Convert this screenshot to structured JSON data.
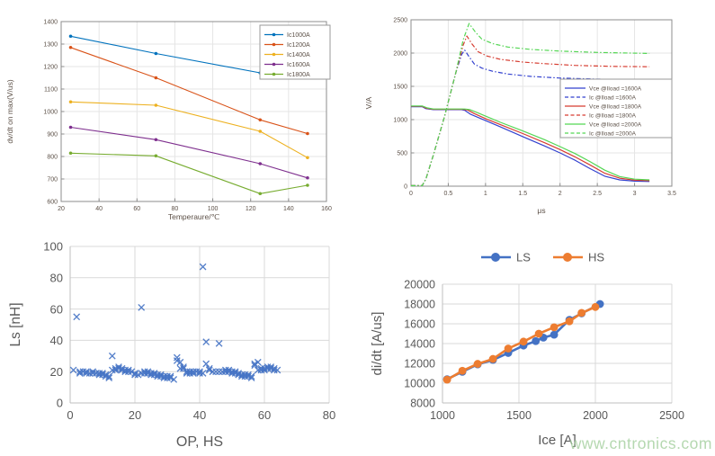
{
  "page": {
    "watermark": "www.cntronics.com",
    "background": "#ffffff"
  },
  "chart_data": [
    {
      "id": "dvdt_vs_temperature",
      "type": "line",
      "style": "matlab",
      "title": "",
      "xlabel": "Temperaure/℃",
      "ylabel": "dv/dt on max(V/us)",
      "xlim": [
        20,
        160
      ],
      "ylim": [
        600,
        1400
      ],
      "xticks": [
        20,
        40,
        60,
        80,
        100,
        120,
        140,
        160
      ],
      "yticks": [
        600,
        700,
        800,
        900,
        1000,
        1100,
        1200,
        1300,
        1400
      ],
      "grid": true,
      "legend_position": "inside-top-right",
      "marker": "dot",
      "x": [
        25,
        70,
        125,
        150
      ],
      "series": [
        {
          "name": "Ic1000A",
          "color": "#0072BD",
          "values": [
            1335,
            1258,
            1172,
            1153
          ]
        },
        {
          "name": "Ic1200A",
          "color": "#D95319",
          "values": [
            1285,
            1150,
            963,
            902
          ]
        },
        {
          "name": "Ic1400A",
          "color": "#EDB120",
          "values": [
            1043,
            1028,
            912,
            795
          ]
        },
        {
          "name": "Ic1600A",
          "color": "#7E2F8E",
          "values": [
            930,
            875,
            768,
            705
          ]
        },
        {
          "name": "Ic1800A",
          "color": "#77AC30",
          "values": [
            815,
            803,
            635,
            672
          ]
        }
      ]
    },
    {
      "id": "turn_on_waveforms",
      "type": "line",
      "style": "matlab",
      "title": "",
      "xlabel": "μs",
      "ylabel": "V/A",
      "xlim": [
        0,
        3.5
      ],
      "ylim": [
        0,
        2500
      ],
      "xticks": [
        0,
        0.5,
        1,
        1.5,
        2,
        2.5,
        3,
        3.5
      ],
      "yticks": [
        0,
        500,
        1000,
        1500,
        2000,
        2500
      ],
      "grid": true,
      "legend_position": "inside-right",
      "marker": "none",
      "series": [
        {
          "name": "Vce @Iload =1600A",
          "color": "#3341cf",
          "dashed": false,
          "points": [
            [
              0,
              1195
            ],
            [
              0.15,
              1195
            ],
            [
              0.2,
              1165
            ],
            [
              0.3,
              1150
            ],
            [
              0.5,
              1150
            ],
            [
              0.68,
              1150
            ],
            [
              0.72,
              1140
            ],
            [
              0.8,
              1080
            ],
            [
              1,
              985
            ],
            [
              1.2,
              890
            ],
            [
              1.5,
              745
            ],
            [
              1.8,
              600
            ],
            [
              2,
              500
            ],
            [
              2.2,
              390
            ],
            [
              2.4,
              265
            ],
            [
              2.6,
              150
            ],
            [
              2.8,
              95
            ],
            [
              3,
              75
            ],
            [
              3.2,
              70
            ]
          ]
        },
        {
          "name": "Ic @Iload =1600A",
          "color": "#3341cf",
          "dashed": true,
          "points": [
            [
              0,
              8
            ],
            [
              0.15,
              8
            ],
            [
              0.2,
              110
            ],
            [
              0.3,
              470
            ],
            [
              0.45,
              1050
            ],
            [
              0.6,
              1700
            ],
            [
              0.68,
              1980
            ],
            [
              0.72,
              2045
            ],
            [
              0.78,
              1945
            ],
            [
              0.85,
              1835
            ],
            [
              0.95,
              1775
            ],
            [
              1.1,
              1725
            ],
            [
              1.3,
              1685
            ],
            [
              1.6,
              1650
            ],
            [
              2,
              1625
            ],
            [
              2.5,
              1608
            ],
            [
              3.2,
              1600
            ]
          ]
        },
        {
          "name": "Vce @Iload =1800A",
          "color": "#d63c30",
          "dashed": false,
          "points": [
            [
              0,
              1200
            ],
            [
              0.15,
              1200
            ],
            [
              0.21,
              1170
            ],
            [
              0.3,
              1155
            ],
            [
              0.5,
              1155
            ],
            [
              0.7,
              1155
            ],
            [
              0.76,
              1145
            ],
            [
              0.85,
              1090
            ],
            [
              1,
              1015
            ],
            [
              1.2,
              925
            ],
            [
              1.5,
              790
            ],
            [
              1.8,
              650
            ],
            [
              2,
              550
            ],
            [
              2.2,
              440
            ],
            [
              2.4,
              320
            ],
            [
              2.6,
              195
            ],
            [
              2.8,
              120
            ],
            [
              3,
              90
            ],
            [
              3.2,
              82
            ]
          ]
        },
        {
          "name": "Ic @Iload =1800A",
          "color": "#d63c30",
          "dashed": true,
          "points": [
            [
              0,
              8
            ],
            [
              0.15,
              8
            ],
            [
              0.2,
              110
            ],
            [
              0.3,
              470
            ],
            [
              0.45,
              1050
            ],
            [
              0.6,
              1700
            ],
            [
              0.7,
              2120
            ],
            [
              0.75,
              2255
            ],
            [
              0.82,
              2135
            ],
            [
              0.9,
              2020
            ],
            [
              1.02,
              1955
            ],
            [
              1.2,
              1905
            ],
            [
              1.5,
              1865
            ],
            [
              1.8,
              1840
            ],
            [
              2.2,
              1815
            ],
            [
              2.7,
              1800
            ],
            [
              3.2,
              1795
            ]
          ]
        },
        {
          "name": "Vce @Iload =2000A",
          "color": "#54d654",
          "dashed": false,
          "points": [
            [
              0,
              1205
            ],
            [
              0.15,
              1205
            ],
            [
              0.22,
              1175
            ],
            [
              0.3,
              1160
            ],
            [
              0.5,
              1160
            ],
            [
              0.72,
              1160
            ],
            [
              0.79,
              1150
            ],
            [
              0.9,
              1100
            ],
            [
              1.05,
              1030
            ],
            [
              1.2,
              960
            ],
            [
              1.5,
              830
            ],
            [
              1.8,
              695
            ],
            [
              2,
              595
            ],
            [
              2.2,
              490
            ],
            [
              2.4,
              370
            ],
            [
              2.6,
              240
            ],
            [
              2.8,
              145
            ],
            [
              3,
              105
            ],
            [
              3.2,
              95
            ]
          ]
        },
        {
          "name": "Ic @Iload =2000A",
          "color": "#54d654",
          "dashed": true,
          "points": [
            [
              0,
              8
            ],
            [
              0.15,
              8
            ],
            [
              0.2,
              110
            ],
            [
              0.3,
              470
            ],
            [
              0.45,
              1050
            ],
            [
              0.6,
              1700
            ],
            [
              0.7,
              2200
            ],
            [
              0.78,
              2445
            ],
            [
              0.86,
              2320
            ],
            [
              0.95,
              2210
            ],
            [
              1.1,
              2140
            ],
            [
              1.3,
              2090
            ],
            [
              1.6,
              2055
            ],
            [
              2,
              2030
            ],
            [
              2.5,
              2010
            ],
            [
              3.2,
              1995
            ]
          ]
        }
      ]
    },
    {
      "id": "stray_inductance_scatter",
      "type": "scatter",
      "style": "excel",
      "title": "",
      "xlabel": "OP, HS",
      "ylabel": "Ls [nH]",
      "xlim": [
        0,
        80
      ],
      "ylim": [
        0,
        100
      ],
      "xticks": [
        0,
        20,
        40,
        60,
        80
      ],
      "yticks": [
        0,
        20,
        40,
        60,
        80,
        100
      ],
      "grid": true,
      "marker": "x",
      "color": "#4472C4",
      "points": [
        [
          1,
          21
        ],
        [
          2,
          55
        ],
        [
          3,
          20
        ],
        [
          3,
          19
        ],
        [
          4,
          20
        ],
        [
          5,
          19
        ],
        [
          5,
          20
        ],
        [
          6,
          19
        ],
        [
          7,
          19
        ],
        [
          7,
          20
        ],
        [
          8,
          19
        ],
        [
          9,
          18
        ],
        [
          9,
          19
        ],
        [
          10,
          18
        ],
        [
          10,
          19
        ],
        [
          11,
          17
        ],
        [
          11,
          18
        ],
        [
          12,
          17
        ],
        [
          12,
          16
        ],
        [
          13,
          30
        ],
        [
          13,
          21
        ],
        [
          14,
          22
        ],
        [
          14,
          21
        ],
        [
          15,
          23
        ],
        [
          15,
          22
        ],
        [
          16,
          22
        ],
        [
          16,
          21
        ],
        [
          17,
          21
        ],
        [
          17,
          20
        ],
        [
          18,
          21
        ],
        [
          18,
          20
        ],
        [
          19,
          20
        ],
        [
          20,
          18
        ],
        [
          20,
          19
        ],
        [
          21,
          18
        ],
        [
          22,
          61
        ],
        [
          22,
          19
        ],
        [
          23,
          19
        ],
        [
          23,
          20
        ],
        [
          24,
          19
        ],
        [
          24,
          20
        ],
        [
          25,
          19
        ],
        [
          25,
          18
        ],
        [
          26,
          18
        ],
        [
          26,
          19
        ],
        [
          27,
          17
        ],
        [
          27,
          18
        ],
        [
          28,
          17
        ],
        [
          28,
          18
        ],
        [
          29,
          17
        ],
        [
          29,
          16
        ],
        [
          30,
          17
        ],
        [
          30,
          16
        ],
        [
          31,
          16
        ],
        [
          31,
          17
        ],
        [
          32,
          15
        ],
        [
          33,
          29
        ],
        [
          33,
          27
        ],
        [
          34,
          26
        ],
        [
          34,
          22
        ],
        [
          35,
          23
        ],
        [
          35,
          22
        ],
        [
          36,
          20
        ],
        [
          36,
          19
        ],
        [
          37,
          20
        ],
        [
          37,
          19
        ],
        [
          38,
          20
        ],
        [
          38,
          19
        ],
        [
          39,
          20
        ],
        [
          40,
          19
        ],
        [
          40,
          20
        ],
        [
          41,
          87
        ],
        [
          41,
          19
        ],
        [
          42,
          39
        ],
        [
          42,
          25
        ],
        [
          43,
          21
        ],
        [
          43,
          22
        ],
        [
          44,
          20
        ],
        [
          45,
          20
        ],
        [
          46,
          38
        ],
        [
          46,
          20
        ],
        [
          47,
          20
        ],
        [
          48,
          20
        ],
        [
          48,
          21
        ],
        [
          49,
          20
        ],
        [
          49,
          21
        ],
        [
          50,
          20
        ],
        [
          50,
          19
        ],
        [
          51,
          19
        ],
        [
          51,
          20
        ],
        [
          52,
          18
        ],
        [
          52,
          19
        ],
        [
          53,
          17
        ],
        [
          53,
          18
        ],
        [
          54,
          17
        ],
        [
          54,
          18
        ],
        [
          55,
          18
        ],
        [
          55,
          17
        ],
        [
          56,
          17
        ],
        [
          56,
          16
        ],
        [
          57,
          25
        ],
        [
          57,
          24
        ],
        [
          58,
          26
        ],
        [
          58,
          21
        ],
        [
          59,
          21
        ],
        [
          59,
          22
        ],
        [
          60,
          21
        ],
        [
          60,
          22
        ],
        [
          61,
          22
        ],
        [
          61,
          23
        ],
        [
          62,
          22
        ],
        [
          62,
          23
        ],
        [
          63,
          21
        ],
        [
          63,
          22
        ],
        [
          64,
          21
        ]
      ]
    },
    {
      "id": "didt_vs_ice",
      "type": "line",
      "style": "excel",
      "title": "",
      "xlabel": "Ice [A]",
      "ylabel": "di/dt [A/us]",
      "xlim": [
        1000,
        2500
      ],
      "ylim": [
        8000,
        20000
      ],
      "xticks": [
        1000,
        1500,
        2000,
        2500
      ],
      "yticks": [
        8000,
        10000,
        12000,
        14000,
        16000,
        18000,
        20000
      ],
      "grid": true,
      "legend_position": "top-center",
      "marker": "circle",
      "series": [
        {
          "name": "LS",
          "color": "#4472C4",
          "points": [
            [
              1030,
              10400
            ],
            [
              1130,
              11150
            ],
            [
              1230,
              11900
            ],
            [
              1330,
              12350
            ],
            [
              1430,
              13050
            ],
            [
              1530,
              13800
            ],
            [
              1610,
              14250
            ],
            [
              1660,
              14600
            ],
            [
              1730,
              14900
            ],
            [
              1830,
              16400
            ],
            [
              1910,
              17050
            ],
            [
              2030,
              18000
            ]
          ]
        },
        {
          "name": "HS",
          "color": "#ED7D31",
          "points": [
            [
              1030,
              10350
            ],
            [
              1130,
              11250
            ],
            [
              1230,
              11950
            ],
            [
              1330,
              12450
            ],
            [
              1430,
              13500
            ],
            [
              1530,
              14200
            ],
            [
              1630,
              15000
            ],
            [
              1730,
              15650
            ],
            [
              1830,
              16250
            ],
            [
              1910,
              17100
            ],
            [
              2000,
              17700
            ]
          ]
        }
      ]
    }
  ]
}
